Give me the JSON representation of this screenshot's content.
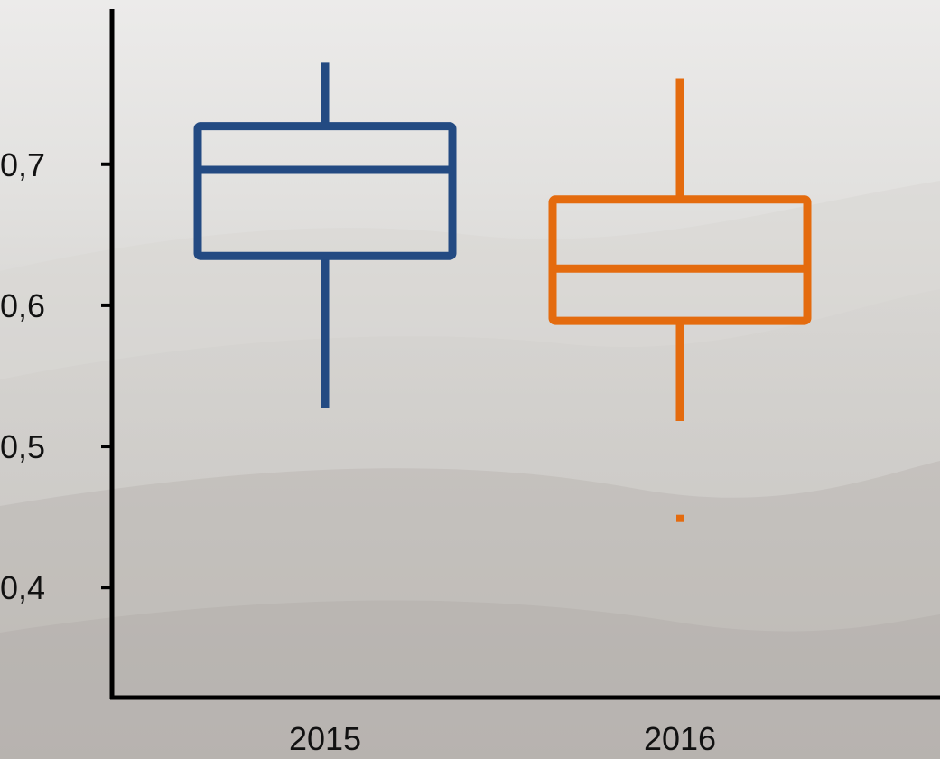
{
  "chart_data": {
    "type": "boxplot",
    "categories": [
      "2015",
      "2016"
    ],
    "boxes": [
      {
        "category": "2015",
        "color": "#234a82",
        "whisker_low": 0.527,
        "q1": 0.635,
        "median": 0.696,
        "q3": 0.727,
        "whisker_high": 0.772,
        "outliers": []
      },
      {
        "category": "2016",
        "color": "#e46b0e",
        "whisker_low": 0.518,
        "q1": 0.589,
        "median": 0.626,
        "q3": 0.675,
        "whisker_high": 0.761,
        "outliers": [
          0.449
        ]
      }
    ],
    "y_ticks": [
      "0,4",
      "0,5",
      "0,6",
      "0,7"
    ],
    "y_tick_values": [
      0.4,
      0.5,
      0.6,
      0.7
    ],
    "ylim": [
      0.322,
      0.81
    ],
    "grid": false,
    "legend": "none",
    "axis_color": "#000000",
    "background": "grayscale landscape photo"
  }
}
